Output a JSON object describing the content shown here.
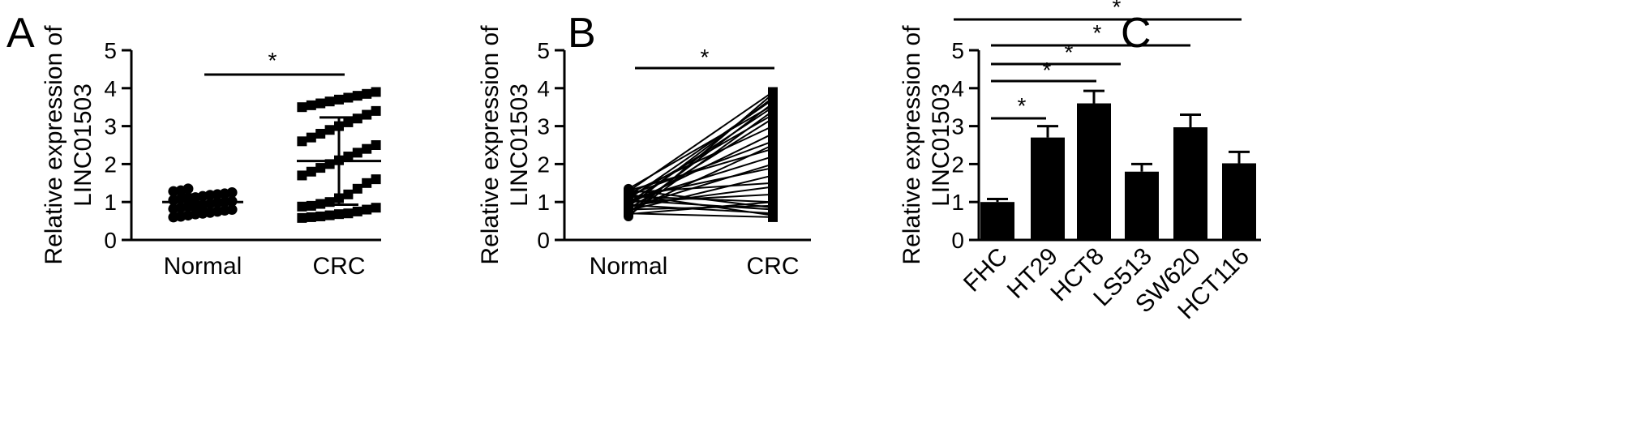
{
  "chart_data": [
    {
      "panel": "A",
      "type": "scatter",
      "ylabel": [
        "Relative expression of",
        "LINC01503"
      ],
      "ylim": [
        0,
        5
      ],
      "yticks": [
        "0",
        "1",
        "2",
        "3",
        "4",
        "5"
      ],
      "categories": [
        "Normal",
        "CRC"
      ],
      "series": [
        {
          "values": [
            0.6,
            0.62,
            0.65,
            0.68,
            0.7,
            0.72,
            0.75,
            0.78,
            0.8,
            0.82,
            0.85,
            0.88,
            0.9,
            0.92,
            0.95,
            0.98,
            1.0,
            1.02,
            1.05,
            1.08,
            1.1,
            1.12,
            1.15,
            1.18,
            1.2,
            1.22,
            1.25,
            1.28,
            1.3,
            1.35
          ],
          "mean": 1.0,
          "sd": 0.2
        },
        {
          "values": [
            0.58,
            0.6,
            0.62,
            0.65,
            0.68,
            0.7,
            0.75,
            0.8,
            0.85,
            0.88,
            0.9,
            0.95,
            1.0,
            1.1,
            1.2,
            1.35,
            1.5,
            1.6,
            1.7,
            1.8,
            1.9,
            2.0,
            2.1,
            2.2,
            2.3,
            2.4,
            2.5,
            2.6,
            2.7,
            2.8,
            2.9,
            3.0,
            3.1,
            3.2,
            3.3,
            3.4,
            3.5,
            3.55,
            3.6,
            3.65,
            3.7,
            3.75,
            3.8,
            3.85,
            3.9
          ],
          "mean": 2.08,
          "sd": 1.15
        }
      ],
      "significance": [
        "*"
      ]
    },
    {
      "panel": "B",
      "type": "line",
      "ylabel": [
        "Relative expression of",
        "LINC01503"
      ],
      "ylim": [
        0,
        5
      ],
      "yticks": [
        "0",
        "1",
        "2",
        "3",
        "4",
        "5"
      ],
      "categories": [
        "Normal",
        "CRC"
      ],
      "pairs": [
        [
          0.62,
          3.85
        ],
        [
          0.65,
          3.4
        ],
        [
          0.68,
          1.0
        ],
        [
          0.7,
          0.6
        ],
        [
          0.72,
          3.6
        ],
        [
          0.75,
          2.5
        ],
        [
          0.78,
          1.7
        ],
        [
          0.8,
          0.9
        ],
        [
          0.82,
          3.2
        ],
        [
          0.85,
          2.0
        ],
        [
          0.88,
          3.75
        ],
        [
          0.9,
          1.4
        ],
        [
          0.92,
          0.7
        ],
        [
          0.95,
          2.8
        ],
        [
          0.98,
          3.5
        ],
        [
          1.0,
          1.2
        ],
        [
          1.02,
          2.2
        ],
        [
          1.05,
          0.8
        ],
        [
          1.08,
          3.7
        ],
        [
          1.1,
          1.9
        ],
        [
          1.12,
          3.3
        ],
        [
          1.15,
          1.0
        ],
        [
          1.18,
          2.6
        ],
        [
          1.2,
          0.65
        ],
        [
          1.22,
          3.0
        ],
        [
          1.25,
          1.5
        ],
        [
          1.28,
          3.9
        ],
        [
          1.3,
          2.4
        ],
        [
          1.32,
          0.85
        ],
        [
          1.35,
          3.55
        ]
      ],
      "significance": [
        "*"
      ]
    },
    {
      "panel": "C",
      "type": "bar",
      "ylabel": [
        "Relative expression of",
        "LINC01503"
      ],
      "ylim": [
        0,
        5
      ],
      "yticks": [
        "0",
        "1",
        "2",
        "3",
        "4",
        "5"
      ],
      "categories": [
        "FHC",
        "HT29",
        "HCT8",
        "LS513",
        "SW620",
        "HCT116"
      ],
      "values": [
        1.0,
        2.7,
        3.6,
        1.8,
        2.97,
        2.02
      ],
      "errors": [
        0.08,
        0.3,
        0.33,
        0.2,
        0.33,
        0.3
      ],
      "comparisons": [
        {
          "from": "FHC",
          "to": "HT29",
          "label": "*"
        },
        {
          "from": "FHC",
          "to": "HCT8",
          "label": "*"
        },
        {
          "from": "FHC",
          "to": "LS513",
          "label": "*"
        },
        {
          "from": "FHC",
          "to": "SW620",
          "label": "*"
        },
        {
          "from": "FHC",
          "to": "HCT116",
          "label": "*"
        }
      ]
    }
  ],
  "panels": {
    "a": "A",
    "b": "B",
    "c": "C"
  }
}
